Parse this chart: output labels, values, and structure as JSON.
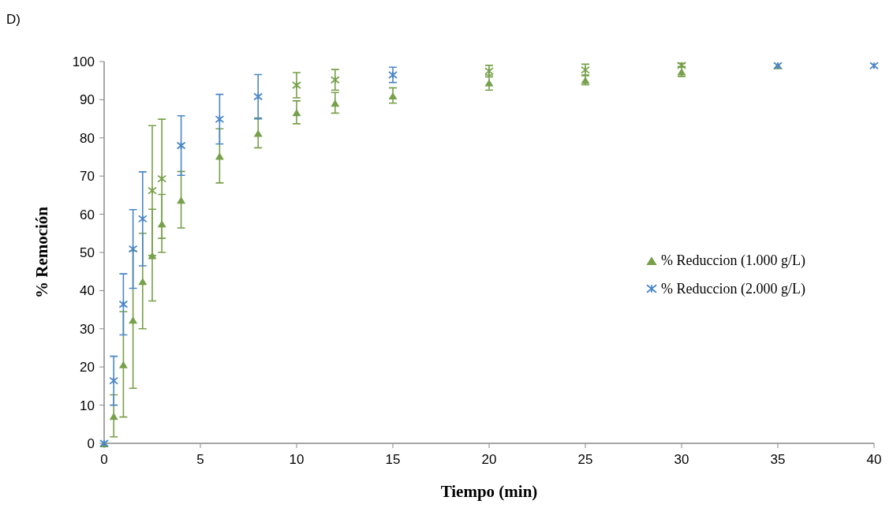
{
  "chart_data": {
    "type": "scatter",
    "xlabel": "Tiempo (min)",
    "ylabel": "% Remoción",
    "annotations": [
      "D)"
    ],
    "xlim": [
      0,
      40
    ],
    "xticks": [
      0,
      5,
      10,
      15,
      20,
      25,
      30,
      35,
      40
    ],
    "ylim": [
      0,
      100
    ],
    "yticks": [
      0,
      10,
      20,
      30,
      40,
      50,
      60,
      70,
      80,
      90,
      100
    ],
    "grid": false,
    "legend": "right",
    "series": [
      {
        "name": "% Reduccion (1.000 g/L)",
        "color": "#77a04a",
        "marker": "triangle",
        "x": [
          0,
          0.5,
          1,
          1.5,
          2,
          2.5,
          3,
          4,
          6,
          8,
          10,
          12,
          15,
          20,
          25,
          30,
          35
        ],
        "values": [
          0,
          7.2,
          20.7,
          32.4,
          42.5,
          49.3,
          57.6,
          63.8,
          75.3,
          81.3,
          86.7,
          89.2,
          91.1,
          94.5,
          95.2,
          97.4,
          99
        ],
        "errors": [
          null,
          5.5,
          13.8,
          18,
          12.5,
          12,
          7.6,
          7.4,
          7.1,
          3.9,
          3,
          2.7,
          2,
          2,
          1.3,
          1.3,
          null
        ]
      },
      {
        "name": "% Reduccion (2.000 g/L)",
        "color": "#4a86c8",
        "marker": "cross",
        "x": [
          0,
          0.5,
          1,
          1.5,
          2,
          2.5,
          3,
          4,
          6,
          8,
          10,
          12,
          15,
          20,
          25,
          30,
          35,
          40
        ],
        "values": [
          0,
          16.4,
          36.4,
          50.9,
          58.8,
          66.2,
          69.3,
          78,
          84.9,
          90.8,
          93.8,
          95.2,
          96.5,
          97.5,
          97.8,
          99,
          98.9,
          98.9
        ],
        "errors": [
          null,
          6.4,
          8,
          10.3,
          12.3,
          17,
          15.6,
          7.8,
          6.5,
          5.8,
          3.3,
          2.7,
          2,
          1.5,
          1.5,
          0.5,
          null,
          null
        ],
        "colors": [
          "#4a86c8",
          "#4a86c8",
          "#4a86c8",
          "#4a86c8",
          "#4a86c8",
          "#77a04a",
          "#77a04a",
          "#4a86c8",
          "#4a86c8",
          "#4a86c8",
          "#77a04a",
          "#77a04a",
          "#4a86c8",
          "#77a04a",
          "#77a04a",
          "#77a04a",
          "#4a86c8",
          "#4a86c8"
        ]
      }
    ]
  }
}
